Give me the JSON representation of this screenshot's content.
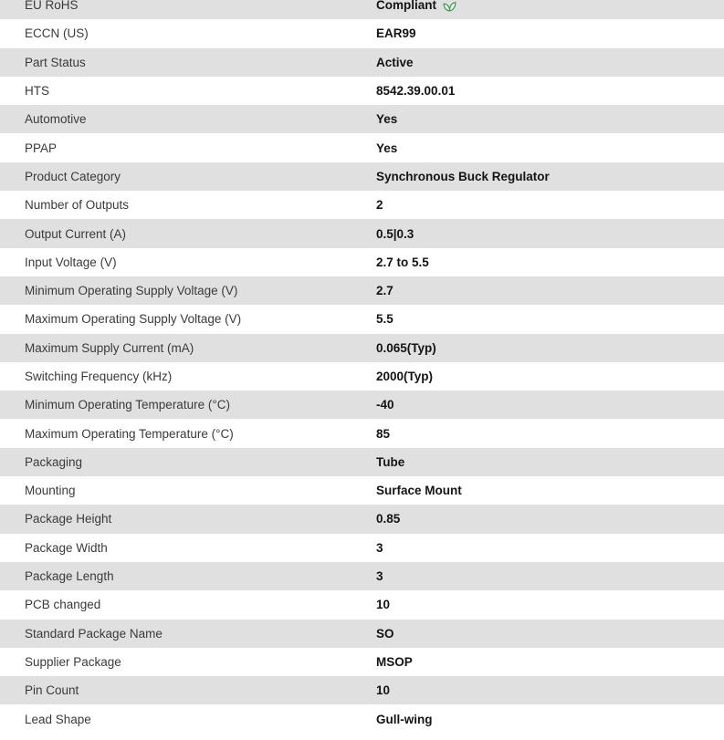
{
  "colors": {
    "stripe_gray": "#e0e0e0",
    "row_white": "#ffffff",
    "label_text": "#3a3a3a",
    "value_text": "#141414",
    "leaf_green": "#3f9953",
    "leaf_fill": "#e9f5ec"
  },
  "table": {
    "rows": [
      {
        "label": "EU RoHS",
        "value": "Compliant",
        "icon": "leaf-icon"
      },
      {
        "label": "ECCN (US)",
        "value": "EAR99"
      },
      {
        "label": "Part Status",
        "value": "Active"
      },
      {
        "label": "HTS",
        "value": "8542.39.00.01"
      },
      {
        "label": "Automotive",
        "value": "Yes"
      },
      {
        "label": "PPAP",
        "value": "Yes"
      },
      {
        "label": "Product Category",
        "value": "Synchronous Buck Regulator"
      },
      {
        "label": "Number of Outputs",
        "value": "2"
      },
      {
        "label": "Output Current (A)",
        "value": "0.5|0.3"
      },
      {
        "label": "Input Voltage (V)",
        "value": "2.7 to 5.5"
      },
      {
        "label": "Minimum Operating Supply Voltage (V)",
        "value": "2.7"
      },
      {
        "label": "Maximum Operating Supply Voltage (V)",
        "value": "5.5"
      },
      {
        "label": "Maximum Supply Current (mA)",
        "value": "0.065(Typ)"
      },
      {
        "label": "Switching Frequency (kHz)",
        "value": "2000(Typ)"
      },
      {
        "label": "Minimum Operating Temperature (°C)",
        "value": "-40"
      },
      {
        "label": "Maximum Operating Temperature (°C)",
        "value": "85"
      },
      {
        "label": "Packaging",
        "value": "Tube"
      },
      {
        "label": "Mounting",
        "value": "Surface Mount"
      },
      {
        "label": "Package Height",
        "value": "0.85"
      },
      {
        "label": "Package Width",
        "value": "3"
      },
      {
        "label": "Package Length",
        "value": "3"
      },
      {
        "label": "PCB changed",
        "value": "10"
      },
      {
        "label": "Standard Package Name",
        "value": "SO"
      },
      {
        "label": "Supplier Package",
        "value": "MSOP"
      },
      {
        "label": "Pin Count",
        "value": "10"
      },
      {
        "label": "Lead Shape",
        "value": "Gull-wing"
      }
    ]
  }
}
